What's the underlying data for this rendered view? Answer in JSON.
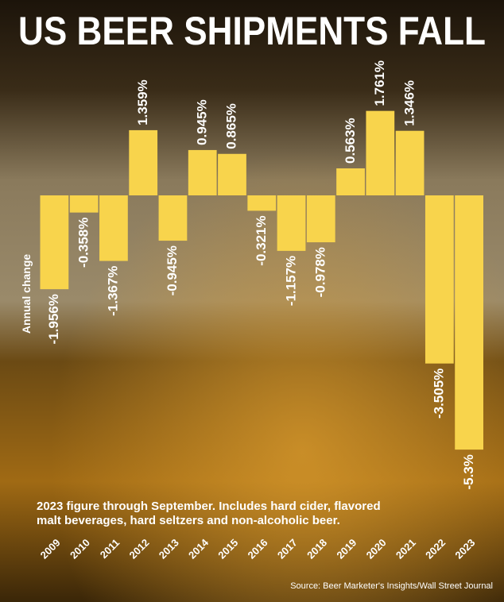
{
  "chart_data": {
    "type": "bar",
    "title": "US BEER SHIPMENTS FALL",
    "ylabel": "Annual change",
    "categories": [
      "2009",
      "2010",
      "2011",
      "2012",
      "2013",
      "2014",
      "2015",
      "2016",
      "2017",
      "2018",
      "2019",
      "2020",
      "2021",
      "2022",
      "2023"
    ],
    "values": [
      -1.956,
      -0.358,
      -1.367,
      1.359,
      -0.945,
      0.945,
      0.865,
      -0.321,
      -1.157,
      -0.978,
      0.563,
      1.761,
      1.346,
      -3.505,
      -5.3
    ],
    "value_labels": [
      "-1.956%",
      "-0.358%",
      "-1.367%",
      "1.359%",
      "-0.945%",
      "0.945%",
      "0.865%",
      "-0.321%",
      "-1.157%",
      "-0.978%",
      "0.563%",
      "1.761%",
      "1.346%",
      "-3.505%",
      "-5.3%"
    ],
    "color": "#f8d44c",
    "annotation": [
      "2023 figure through September. Includes hard cider, flavored",
      "malt beverages, hard seltzers and non-alcoholic beer."
    ],
    "source": "Source: Beer Marketer's Insights/Wall Street Journal"
  }
}
